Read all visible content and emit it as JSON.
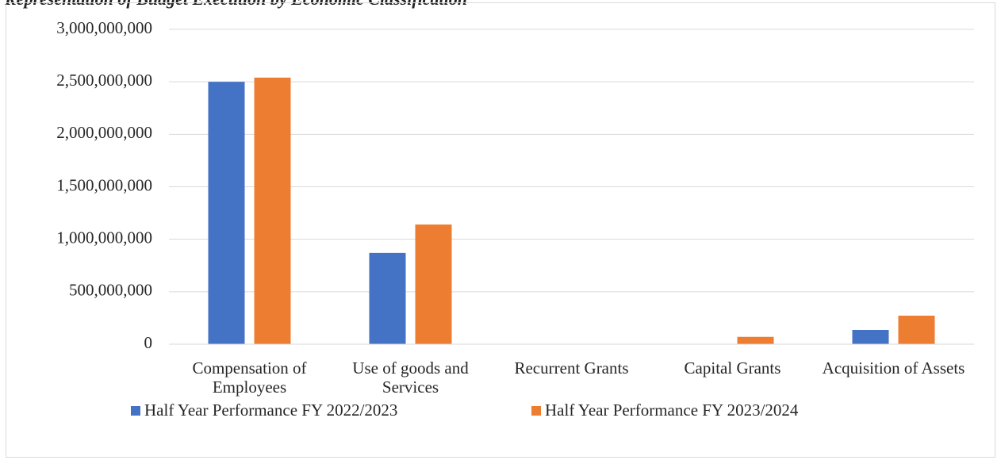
{
  "chart_data": {
    "type": "bar",
    "title": "Representation of Budget Execution by Economic Classification",
    "categories": [
      "Compensation of Employees",
      "Use of goods and Services",
      "Recurrent Grants",
      "Capital Grants",
      "Acquisition of Assets"
    ],
    "series": [
      {
        "name": "Half Year Performance FY 2022/2023",
        "color": "#4472c4",
        "values": [
          2500000000,
          870000000,
          0,
          0,
          136000000
        ]
      },
      {
        "name": "Half Year Performance FY 2023/2024",
        "color": "#ed7d31",
        "values": [
          2540000000,
          1140000000,
          0,
          70000000,
          272000000
        ]
      }
    ],
    "ylim": [
      0,
      3000000000
    ],
    "yticks": [
      0,
      {
        "value": 500000000,
        "label": "500,000,000"
      },
      {
        "value": 1000000000,
        "label": "1,000,000,000"
      },
      {
        "value": 1500000000,
        "label": "1,500,000,000"
      },
      {
        "value": 2000000000,
        "label": "2,000,000,000"
      },
      {
        "value": 2500000000,
        "label": "2,500,000,000"
      },
      {
        "value": 3000000000,
        "label": "3,000,000,000"
      }
    ],
    "grid": true,
    "legend": "bottom"
  }
}
